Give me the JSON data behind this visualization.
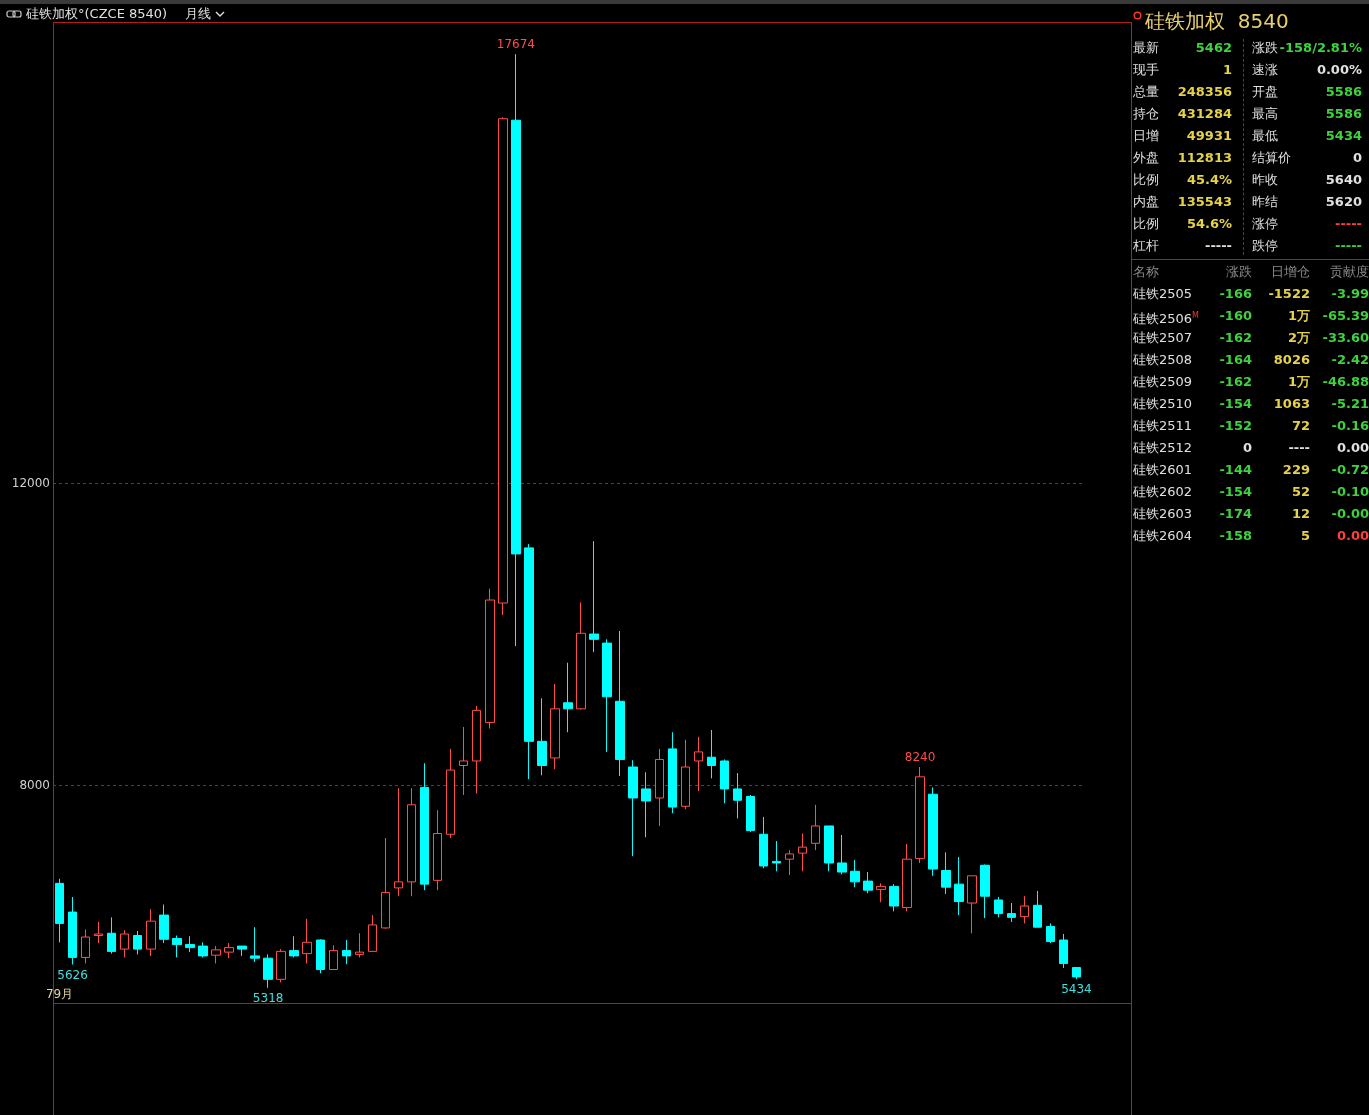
{
  "chart_data": [
    {
      "type": "candlestick",
      "title": "硅铁加权°(CZCE 8540)",
      "subtitle": "月线",
      "categories": [
        "79月",
        null,
        null,
        null,
        null,
        null,
        null,
        null,
        null,
        null,
        null,
        null,
        null,
        null,
        null,
        null,
        null,
        null,
        null,
        null,
        null,
        null,
        null,
        null,
        null,
        null,
        null,
        null,
        null,
        null,
        null,
        null,
        null,
        null,
        null,
        null,
        null,
        null,
        null,
        null,
        null,
        null,
        null,
        null,
        null,
        null,
        null,
        null,
        null,
        null,
        null,
        null,
        null,
        null,
        null,
        null,
        null,
        null,
        null,
        null,
        null,
        null,
        null,
        null,
        null,
        null,
        null,
        null,
        null,
        null,
        null,
        null,
        null,
        null,
        null,
        null,
        null,
        null,
        null
      ],
      "ohlc": [
        [
          6700,
          6760,
          5920,
          6170
        ],
        [
          6320,
          6520,
          5626,
          5720
        ],
        [
          5720,
          6090,
          5640,
          5990
        ],
        [
          6010,
          6190,
          5910,
          6030
        ],
        [
          6040,
          6250,
          5770,
          5800
        ],
        [
          5830,
          6080,
          5720,
          6030
        ],
        [
          6010,
          6070,
          5760,
          5830
        ],
        [
          5830,
          6360,
          5740,
          6200
        ],
        [
          6280,
          6420,
          5910,
          5960
        ],
        [
          5970,
          6010,
          5720,
          5890
        ],
        [
          5890,
          6000,
          5790,
          5850
        ],
        [
          5870,
          5920,
          5720,
          5740
        ],
        [
          5750,
          5870,
          5640,
          5820
        ],
        [
          5790,
          5910,
          5710,
          5850
        ],
        [
          5870,
          5870,
          5740,
          5830
        ],
        [
          5740,
          6120,
          5660,
          5710
        ],
        [
          5710,
          5760,
          5318,
          5430
        ],
        [
          5430,
          5830,
          5390,
          5800
        ],
        [
          5810,
          6000,
          5720,
          5740
        ],
        [
          5770,
          6230,
          5640,
          5920
        ],
        [
          5950,
          5960,
          5510,
          5560
        ],
        [
          5560,
          5880,
          5560,
          5810
        ],
        [
          5810,
          5950,
          5630,
          5740
        ],
        [
          5760,
          6040,
          5720,
          5790
        ],
        [
          5800,
          6280,
          5790,
          6150
        ],
        [
          6110,
          7300,
          6100,
          6580
        ],
        [
          6640,
          7960,
          6530,
          6720
        ],
        [
          6720,
          7960,
          6530,
          7740
        ],
        [
          7970,
          8290,
          6610,
          6690
        ],
        [
          6740,
          7670,
          6610,
          7360
        ],
        [
          7350,
          8480,
          7300,
          8200
        ],
        [
          8260,
          8770,
          7870,
          8320
        ],
        [
          8320,
          9050,
          7890,
          8990
        ],
        [
          8830,
          10600,
          8750,
          10450
        ],
        [
          10410,
          16840,
          10250,
          16820
        ],
        [
          16800,
          17674,
          9840,
          11060
        ],
        [
          11140,
          11190,
          8080,
          8580
        ],
        [
          8580,
          9150,
          8130,
          8260
        ],
        [
          8360,
          9340,
          8210,
          9010
        ],
        [
          9090,
          9620,
          8700,
          9010
        ],
        [
          9010,
          10420,
          9000,
          10010
        ],
        [
          10000,
          11230,
          9760,
          9930
        ],
        [
          9880,
          9930,
          8440,
          9170
        ],
        [
          9110,
          10040,
          8120,
          8340
        ],
        [
          8240,
          8330,
          7060,
          7830
        ],
        [
          7950,
          8170,
          7310,
          7790
        ],
        [
          7830,
          8480,
          7460,
          8340
        ],
        [
          8480,
          8700,
          7630,
          7710
        ],
        [
          7720,
          8600,
          7680,
          8240
        ],
        [
          8320,
          8640,
          7920,
          8440
        ],
        [
          8370,
          8730,
          8090,
          8260
        ],
        [
          8320,
          8340,
          7760,
          7950
        ],
        [
          7950,
          8160,
          7560,
          7800
        ],
        [
          7850,
          7870,
          7380,
          7400
        ],
        [
          7350,
          7580,
          6900,
          6930
        ],
        [
          6990,
          7260,
          6860,
          6970
        ],
        [
          7020,
          7140,
          6810,
          7090
        ],
        [
          7100,
          7360,
          6860,
          7180
        ],
        [
          7230,
          7740,
          7140,
          7460
        ],
        [
          7460,
          7460,
          6860,
          6970
        ],
        [
          6970,
          7340,
          6820,
          6850
        ],
        [
          6860,
          7010,
          6650,
          6720
        ],
        [
          6730,
          6850,
          6570,
          6610
        ],
        [
          6620,
          6700,
          6450,
          6660
        ],
        [
          6660,
          6690,
          6330,
          6400
        ],
        [
          6380,
          7220,
          6330,
          7020
        ],
        [
          7030,
          8240,
          6970,
          8110
        ],
        [
          7880,
          7970,
          6800,
          6890
        ],
        [
          6870,
          7110,
          6560,
          6650
        ],
        [
          6690,
          7050,
          6280,
          6460
        ],
        [
          6440,
          6800,
          6040,
          6800
        ],
        [
          6940,
          6950,
          6240,
          6530
        ],
        [
          6480,
          6520,
          6250,
          6300
        ],
        [
          6300,
          6440,
          6190,
          6250
        ],
        [
          6260,
          6530,
          6170,
          6400
        ],
        [
          6410,
          6600,
          6120,
          6120
        ],
        [
          6130,
          6170,
          5910,
          5930
        ],
        [
          5950,
          6030,
          5580,
          5640
        ],
        [
          5586,
          5586,
          5434,
          5462
        ]
      ],
      "colors": [
        "#00ffff",
        "#00ffff",
        "#ff4d4d",
        "#ff4d4d",
        "#00ffff",
        "#ff4d4d",
        "#00ffff",
        "#ff4d4d",
        "#00ffff",
        "#00ffff",
        "#00ffff",
        "#00ffff",
        "#ff4d4d",
        "#ff4d4d",
        "#00ffff",
        "#00ffff",
        "#00ffff",
        "#ff4d4d",
        "#00ffff",
        "#ff4d4d",
        "#00ffff",
        "#ff4d4d",
        "#00ffff",
        "#ff4d4d",
        "#ff4d4d",
        "#ff4d4d",
        "#ff4d4d",
        "#ff4d4d",
        "#00ffff",
        "#ff4d4d",
        "#ff4d4d",
        "#ff4d4d",
        "#ff4d4d",
        "#ff4d4d",
        "#ff4d4d",
        "#00ffff",
        "#00ffff",
        "#00ffff",
        "#ff4d4d",
        "#00ffff",
        "#ff4d4d",
        "#00ffff",
        "#00ffff",
        "#00ffff",
        "#00ffff",
        "#00ffff",
        "#ff4d4d",
        "#00ffff",
        "#ff4d4d",
        "#ff4d4d",
        "#00ffff",
        "#00ffff",
        "#00ffff",
        "#00ffff",
        "#00ffff",
        "#00ffff",
        "#ff4d4d",
        "#ff4d4d",
        "#ff4d4d",
        "#00ffff",
        "#00ffff",
        "#00ffff",
        "#00ffff",
        "#ff4d4d",
        "#00ffff",
        "#ff4d4d",
        "#ff4d4d",
        "#00ffff",
        "#00ffff",
        "#00ffff",
        "#ff4d4d",
        "#00ffff",
        "#00ffff",
        "#00ffff",
        "#ff4d4d",
        "#00ffff",
        "#00ffff",
        "#00ffff",
        "#00ffff"
      ],
      "ylim": [
        5130,
        18100
      ],
      "yticks": [
        8000,
        12000
      ],
      "grid": "y",
      "annotations": [
        {
          "text": "17674",
          "y": 17674
        },
        {
          "text": "8240",
          "y": 8240
        },
        {
          "text": "5626",
          "y": 5626
        },
        {
          "text": "5318",
          "y": 5318
        },
        {
          "text": "5434",
          "y": 5434
        }
      ]
    },
    {
      "type": "other",
      "title": "硅铁加权  8540",
      "annotations": [
        "最新",
        "5462",
        "涨跌",
        "-158/2.81%",
        "现手",
        "1",
        "速涨",
        "0.00%",
        "总量",
        "248356",
        "开盘",
        "5586",
        "持仓",
        "431284",
        "最高",
        "5586",
        "日增",
        "49931",
        "最低",
        "5434",
        "外盘",
        "112813",
        "结算价",
        "0",
        "比例",
        "45.4%",
        "昨收",
        "5640",
        "内盘",
        "135543",
        "昨结",
        "5620",
        "比例",
        "54.6%",
        "涨停",
        "-----",
        "杠杆",
        "-----",
        "跌停",
        "-----"
      ],
      "colors": [
        "#e0e0e0",
        "#3fd23f",
        "#e0e0e0",
        "#3fd23f",
        "#e0e0e0",
        "#e6d24a",
        "#e0e0e0",
        "#e0e0e0",
        "#e0e0e0",
        "#e6d24a",
        "#e0e0e0",
        "#3fd23f",
        "#e0e0e0",
        "#e6d24a",
        "#e0e0e0",
        "#3fd23f",
        "#e0e0e0",
        "#e6d24a",
        "#e0e0e0",
        "#3fd23f",
        "#e0e0e0",
        "#e6d24a",
        "#e0e0e0",
        "#e0e0e0",
        "#e0e0e0",
        "#e6d24a",
        "#e0e0e0",
        "#e0e0e0",
        "#e0e0e0",
        "#e6d24a",
        "#e0e0e0",
        "#e0e0e0",
        "#e0e0e0",
        "#e6d24a",
        "#e0e0e0",
        "#ff4040",
        "#e0e0e0",
        "#e0e0e0",
        "#e0e0e0",
        "#3fd23f"
      ]
    },
    {
      "type": "other",
      "annotations": [
        "名称",
        "涨跌",
        "日增仓",
        "贡献度",
        "硅铁2505",
        "-166",
        "-1522",
        "-3.99",
        "硅铁2506$^{M}$",
        "-160",
        "1万",
        "-65.39",
        "硅铁2507",
        "-162",
        "2万",
        "-33.60",
        "硅铁2508",
        "-164",
        "8026",
        "-2.42",
        "硅铁2509",
        "-162",
        "1万",
        "-46.88",
        "硅铁2510",
        "-154",
        "1063",
        "-5.21",
        "硅铁2511",
        "-152",
        "72",
        "-0.16",
        "硅铁2512",
        "0",
        "----",
        "0.00",
        "硅铁2601",
        "-144",
        "229",
        "-0.72",
        "硅铁2602",
        "-154",
        "52",
        "-0.10",
        "硅铁2603",
        "-174",
        "12",
        "-0.00",
        "硅铁2604",
        "-158",
        "5",
        "0.00"
      ],
      "colors": [
        "#8a8a8a",
        "#8a8a8a",
        "#8a8a8a",
        "#8a8a8a",
        "#e0e0e0",
        "#3fd23f",
        "#e6d24a",
        "#3fd23f",
        "#e0e0e0",
        "#3fd23f",
        "#e6d24a",
        "#3fd23f",
        "#e0e0e0",
        "#3fd23f",
        "#e6d24a",
        "#3fd23f",
        "#e0e0e0",
        "#3fd23f",
        "#e6d24a",
        "#3fd23f",
        "#e0e0e0",
        "#3fd23f",
        "#e6d24a",
        "#3fd23f",
        "#e0e0e0",
        "#3fd23f",
        "#e6d24a",
        "#3fd23f",
        "#e0e0e0",
        "#3fd23f",
        "#e6d24a",
        "#3fd23f",
        "#e0e0e0",
        "#e0e0e0",
        "#e0e0e0",
        "#e0e0e0",
        "#e0e0e0",
        "#3fd23f",
        "#e6d24a",
        "#3fd23f",
        "#e0e0e0",
        "#3fd23f",
        "#e6d24a",
        "#3fd23f",
        "#e0e0e0",
        "#3fd23f",
        "#e6d24a",
        "#3fd23f",
        "#e0e0e0",
        "#3fd23f",
        "#e6d24a",
        "#ff4040"
      ]
    }
  ]
}
